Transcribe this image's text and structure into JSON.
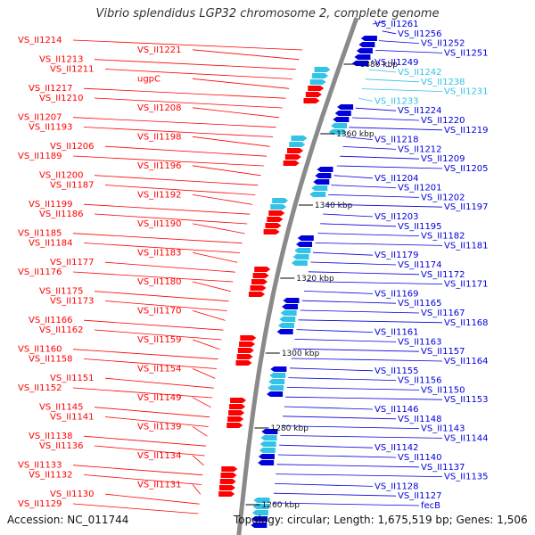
{
  "title": "Vibrio splendidus LGP32 chromosome 2, complete genome",
  "accession_text": "Accession: NC_011744",
  "summary_text": "Topology: circular; Length: 1,675,519 bp; Genes: 1,506",
  "colors": {
    "forward": "#ff0000",
    "reverse": "#0000dd",
    "highlight": "#33c3e6",
    "backbone": "#8a8a8a",
    "tick": "#2e9e2e"
  },
  "scale_ticks": [
    "1380 kbp",
    "1360 kbp",
    "1340 kbp",
    "1320 kbp",
    "1300 kbp",
    "1280 kbp",
    "1260 kbp"
  ],
  "left_labels": [
    "VS_II1214",
    "VS_II1221",
    "VS_II1213",
    "VS_II1211",
    "ugpC",
    "VS_II1217",
    "VS_II1210",
    "VS_II1208",
    "VS_II1207",
    "VS_II1193",
    "VS_II1198",
    "VS_II1206",
    "VS_II1189",
    "VS_II1196",
    "VS_II1200",
    "VS_II1187",
    "VS_II1192",
    "VS_II1199",
    "VS_II1186",
    "VS_II1190",
    "VS_II1185",
    "VS_II1184",
    "VS_II1183",
    "VS_II1177",
    "VS_II1176",
    "VS_II1180",
    "VS_II1175",
    "VS_II1173",
    "VS_II1170",
    "VS_II1166",
    "VS_II1162",
    "VS_II1159",
    "VS_II1160",
    "VS_II1158",
    "VS_II1154",
    "VS_II1151",
    "VS_II1152",
    "VS_II1149",
    "VS_II1145",
    "VS_II1141",
    "VS_II1139",
    "VS_II1138",
    "VS_II1136",
    "VS_II1134",
    "VS_II1133",
    "VS_II1132",
    "VS_II1131",
    "VS_II1130",
    "VS_II1129"
  ],
  "right_labels": [
    "VS_II1261",
    "VS_II1256",
    "VS_II1252",
    "VS_II1251",
    "VS_II1249",
    "VS_II1242",
    "VS_II1238",
    "VS_II1231",
    "VS_II1233",
    "VS_II1224",
    "VS_II1220",
    "VS_II1219",
    "VS_II1218",
    "VS_II1212",
    "VS_II1209",
    "VS_II1205",
    "VS_II1204",
    "VS_II1201",
    "VS_II1202",
    "VS_II1197",
    "VS_II1203",
    "VS_II1195",
    "VS_II1182",
    "VS_II1181",
    "VS_II1179",
    "VS_II1174",
    "VS_II1172",
    "VS_II1171",
    "VS_II1169",
    "VS_II1165",
    "VS_II1167",
    "VS_II1168",
    "VS_II1161",
    "VS_II1163",
    "VS_II1157",
    "VS_II1164",
    "VS_II1155",
    "VS_II1156",
    "VS_II1150",
    "VS_II1153",
    "VS_II1146",
    "VS_II1148",
    "VS_II1143",
    "VS_II1144",
    "VS_II1142",
    "VS_II1140",
    "VS_II1137",
    "VS_II1135",
    "VS_II1128",
    "VS_II1127",
    "fecB"
  ]
}
